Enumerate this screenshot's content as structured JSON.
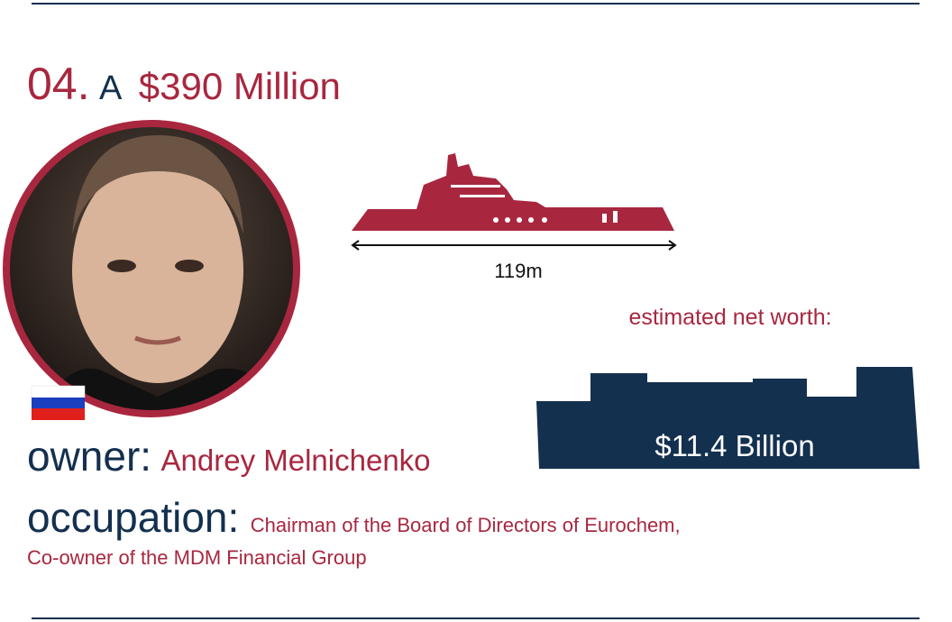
{
  "header": {
    "number": "04.",
    "article": "A",
    "price": "$390 Million"
  },
  "yacht": {
    "length": "119m"
  },
  "net_worth": {
    "label": "estimated net worth:",
    "value": "$11.4 Billion"
  },
  "owner": {
    "label": "owner:",
    "name": "Andrey Melnichenko"
  },
  "occupation": {
    "label": "occupation:",
    "line1": "Chairman of the Board of Directors of Eurochem,",
    "line2": "Co-owner of the MDM Financial Group"
  }
}
